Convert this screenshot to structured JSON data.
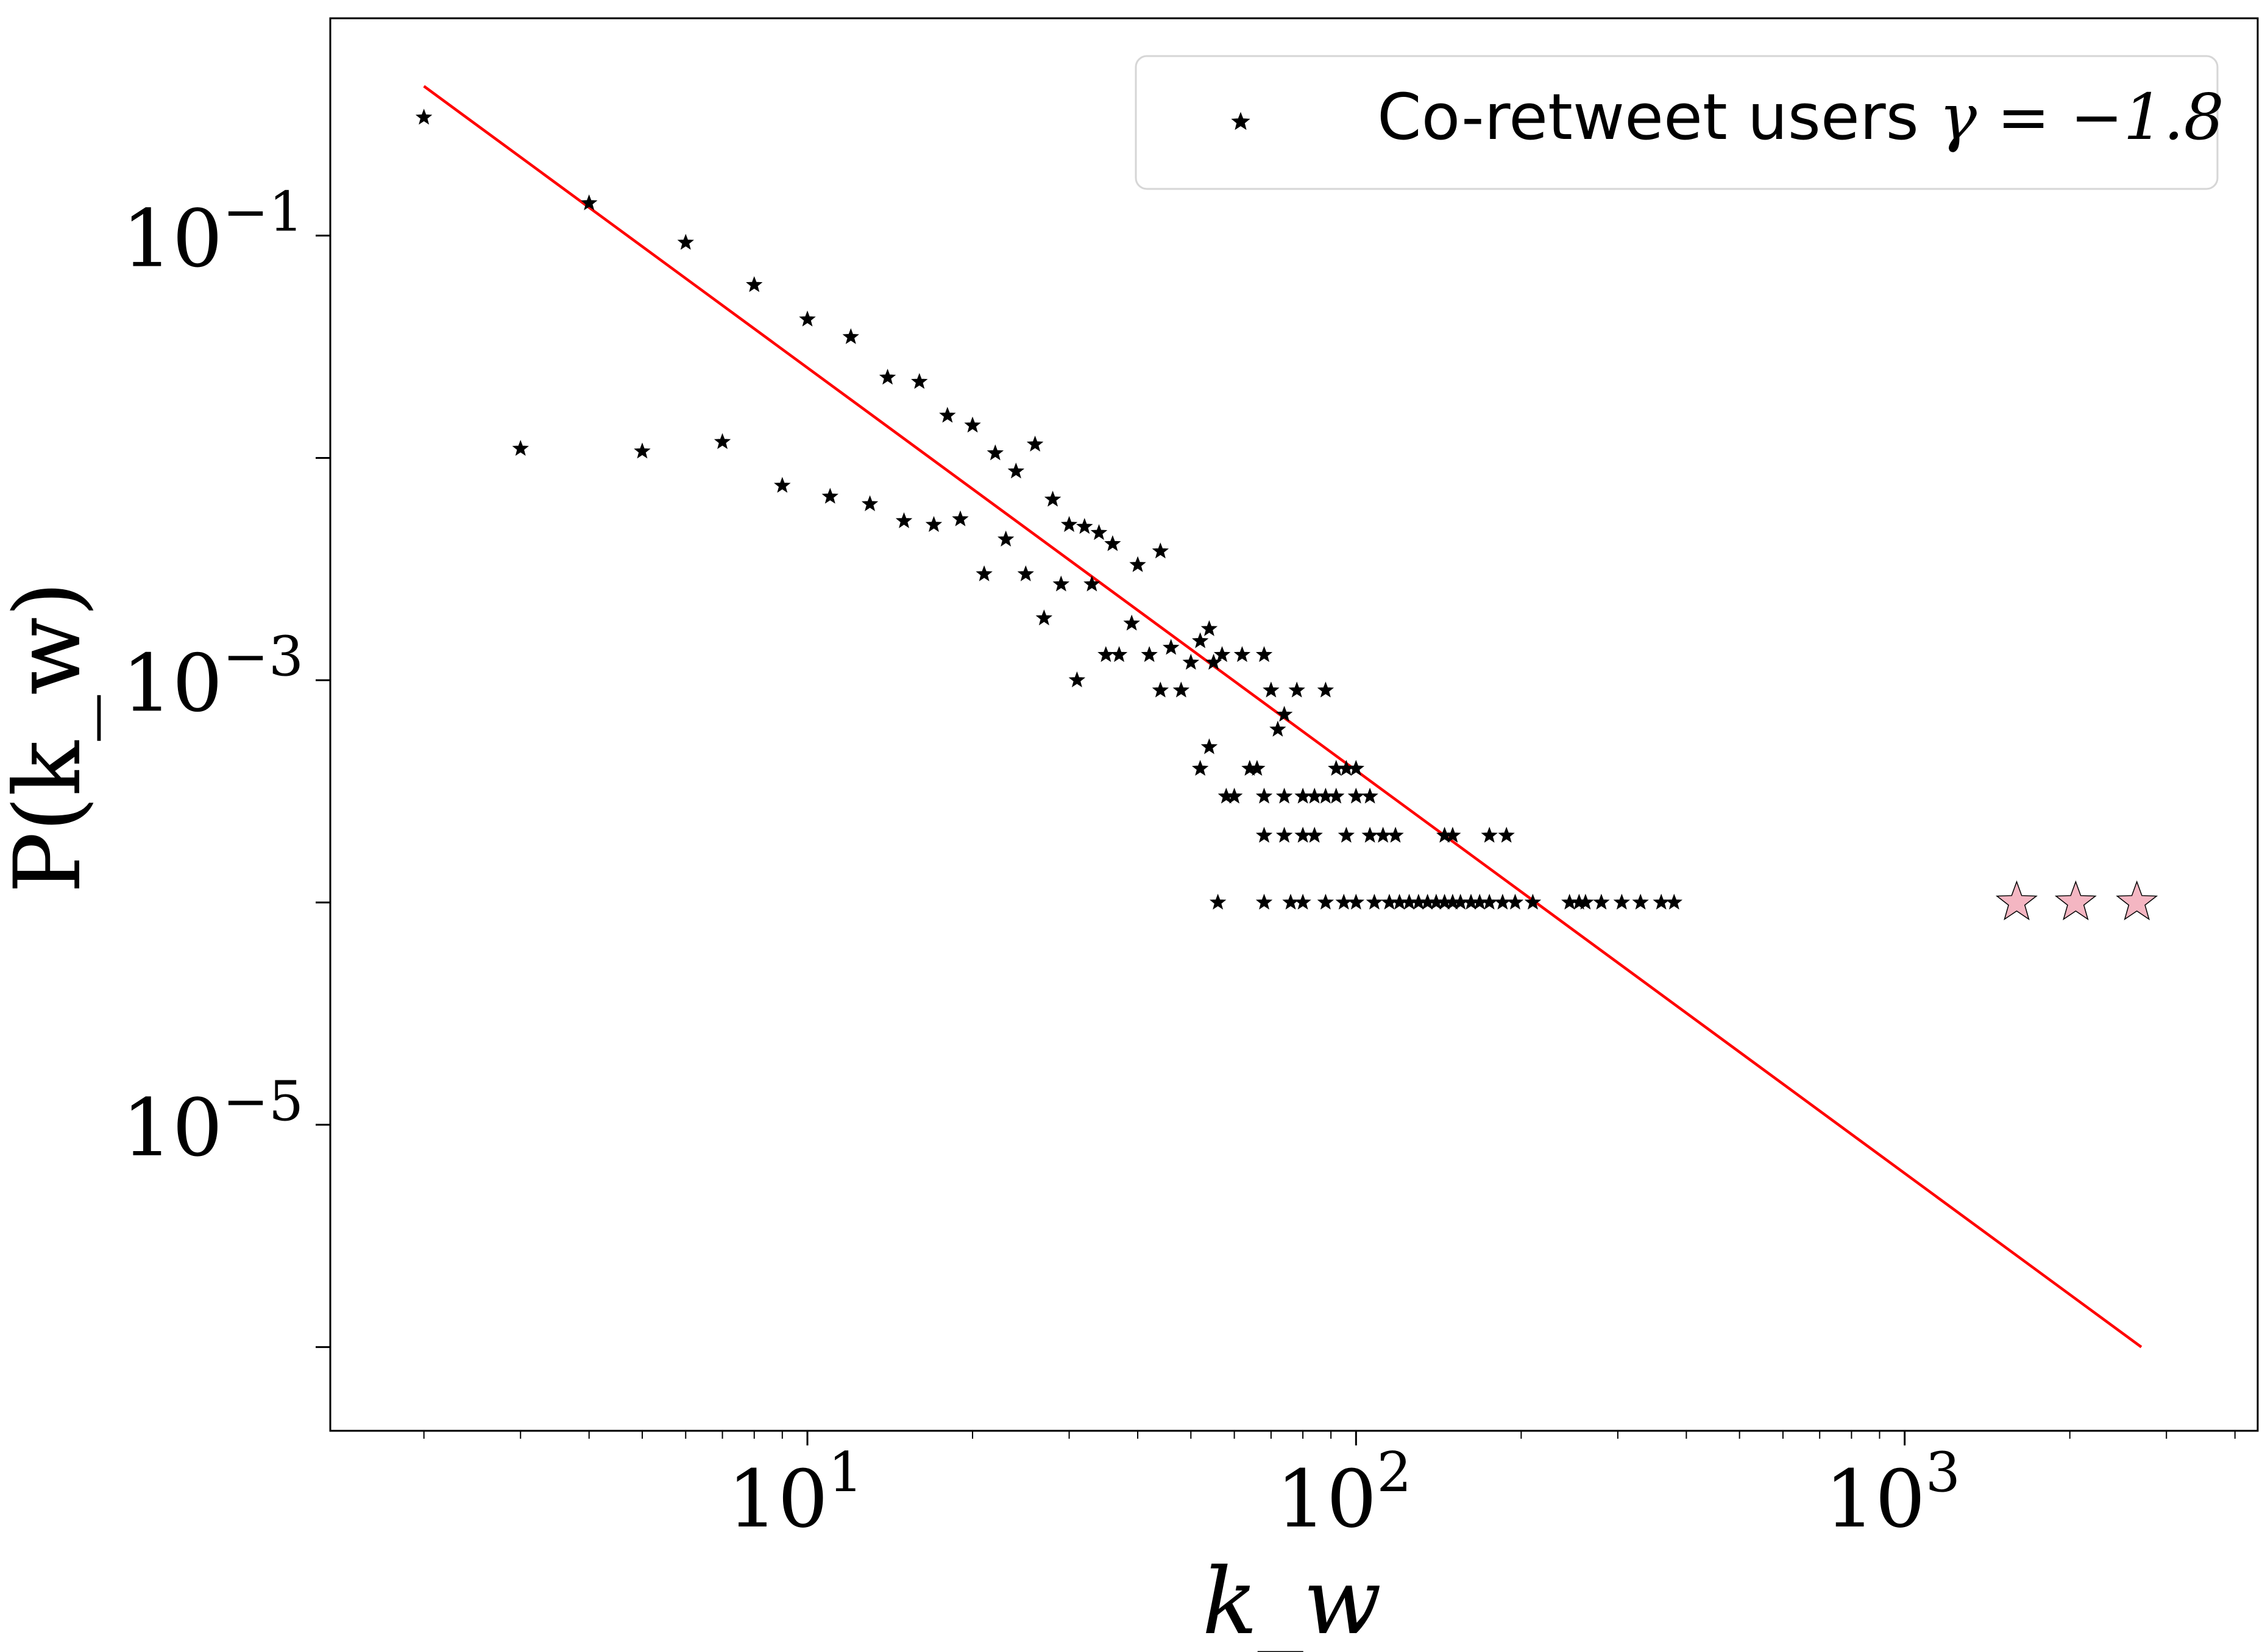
{
  "chart_data": {
    "type": "scatter",
    "title": "",
    "xlabel": "k_w",
    "ylabel": "P(k_w)",
    "xscale": "log",
    "yscale": "log",
    "xlim": [
      1.35,
      4400
    ],
    "ylim": [
      4.2e-07,
      0.95
    ],
    "xticks": [
      {
        "value": 10,
        "base": "10",
        "exp": "1"
      },
      {
        "value": 100,
        "base": "10",
        "exp": "2"
      },
      {
        "value": 1000,
        "base": "10",
        "exp": "3"
      }
    ],
    "yticks": [
      {
        "value": 0.1,
        "base": "10",
        "exp": "−1"
      },
      {
        "value": 0.001,
        "base": "10",
        "exp": "−3"
      },
      {
        "value": 1e-05,
        "base": "10",
        "exp": "−5"
      }
    ],
    "grid": false,
    "legend": {
      "position": "top-right",
      "label_text": "Co-retweet users ",
      "label_math": "γ = −1.8"
    },
    "series": [
      {
        "name": "Co-retweet users γ = −1.8",
        "marker": "star",
        "color": "#000000",
        "points": [
          [
            2,
            0.34
          ],
          [
            4,
            0.14
          ],
          [
            6,
            0.093
          ],
          [
            8,
            0.06
          ],
          [
            10,
            0.042
          ],
          [
            12,
            0.035
          ],
          [
            14,
            0.023
          ],
          [
            16,
            0.022
          ],
          [
            18,
            0.0155
          ],
          [
            20,
            0.014
          ],
          [
            22,
            0.0105
          ],
          [
            24,
            0.0087
          ],
          [
            26,
            0.0115
          ],
          [
            28,
            0.0065
          ],
          [
            30,
            0.005
          ],
          [
            32,
            0.0049
          ],
          [
            34,
            0.0046
          ],
          [
            36,
            0.0041
          ],
          [
            40,
            0.0033
          ],
          [
            44,
            0.0038
          ],
          [
            3,
            0.011
          ],
          [
            5,
            0.0107
          ],
          [
            7,
            0.0118
          ],
          [
            9,
            0.0075
          ],
          [
            11,
            0.0067
          ],
          [
            13,
            0.0062
          ],
          [
            15,
            0.0052
          ],
          [
            17,
            0.005
          ],
          [
            19,
            0.0053
          ],
          [
            21,
            0.003
          ],
          [
            23,
            0.0043
          ],
          [
            25,
            0.003
          ],
          [
            27,
            0.0019
          ],
          [
            29,
            0.0027
          ],
          [
            31,
            0.001
          ],
          [
            33,
            0.0027
          ],
          [
            35,
            0.0013
          ],
          [
            37,
            0.0013
          ],
          [
            39,
            0.0018
          ],
          [
            42,
            0.0013
          ],
          [
            44,
            0.0009
          ],
          [
            46,
            0.0014
          ],
          [
            48,
            0.0009
          ],
          [
            50,
            0.0012
          ],
          [
            52,
            0.0015
          ],
          [
            54,
            0.0017
          ],
          [
            55,
            0.0012
          ],
          [
            52,
            0.0004
          ],
          [
            54,
            0.0005
          ],
          [
            57,
            0.0013
          ],
          [
            58,
            0.0003
          ],
          [
            60,
            0.0003
          ],
          [
            62,
            0.0013
          ],
          [
            64,
            0.0004
          ],
          [
            66,
            0.0004
          ],
          [
            68,
            0.0013
          ],
          [
            70,
            0.0009
          ],
          [
            72,
            0.0006
          ],
          [
            74,
            0.0007
          ],
          [
            78,
            0.0009
          ],
          [
            88,
            0.0009
          ],
          [
            92,
            0.0004
          ],
          [
            96,
            0.0004
          ],
          [
            100,
            0.0004
          ],
          [
            92,
            0.0003
          ],
          [
            100,
            0.0003
          ],
          [
            106,
            0.0003
          ],
          [
            68,
            0.0003
          ],
          [
            74,
            0.0003
          ],
          [
            80,
            0.0003
          ],
          [
            84,
            0.0003
          ],
          [
            88,
            0.0003
          ],
          [
            68,
            0.0002
          ],
          [
            74,
            0.0002
          ],
          [
            80,
            0.0002
          ],
          [
            84,
            0.0002
          ],
          [
            96,
            0.0002
          ],
          [
            106,
            0.0002
          ],
          [
            112,
            0.0002
          ],
          [
            118,
            0.0002
          ],
          [
            145,
            0.0002
          ],
          [
            150,
            0.0002
          ],
          [
            175,
            0.0002
          ],
          [
            188,
            0.0002
          ],
          [
            56,
            0.0001
          ],
          [
            68,
            0.0001
          ],
          [
            76,
            0.0001
          ],
          [
            80,
            0.0001
          ],
          [
            88,
            0.0001
          ],
          [
            95,
            0.0001
          ],
          [
            100,
            0.0001
          ],
          [
            108,
            0.0001
          ],
          [
            115,
            0.0001
          ],
          [
            120,
            0.0001
          ],
          [
            125,
            0.0001
          ],
          [
            130,
            0.0001
          ],
          [
            135,
            0.0001
          ],
          [
            140,
            0.0001
          ],
          [
            145,
            0.0001
          ],
          [
            150,
            0.0001
          ],
          [
            155,
            0.0001
          ],
          [
            162,
            0.0001
          ],
          [
            168,
            0.0001
          ],
          [
            175,
            0.0001
          ],
          [
            185,
            0.0001
          ],
          [
            195,
            0.0001
          ],
          [
            210,
            0.0001
          ],
          [
            245,
            0.0001
          ],
          [
            255,
            0.0001
          ],
          [
            262,
            0.0001
          ],
          [
            280,
            0.0001
          ],
          [
            305,
            0.0001
          ],
          [
            330,
            0.0001
          ],
          [
            360,
            0.0001
          ],
          [
            380,
            0.0001
          ]
        ]
      },
      {
        "name": "",
        "marker": "star-large",
        "color": "#f4b6c2",
        "points": [
          [
            1600,
            0.0001
          ],
          [
            2050,
            0.0001
          ],
          [
            2650,
            0.0001
          ]
        ]
      }
    ],
    "fit_line": {
      "color": "#ff0000",
      "x": [
        2,
        2700
      ],
      "y": [
        0.47,
        1e-06
      ]
    }
  }
}
